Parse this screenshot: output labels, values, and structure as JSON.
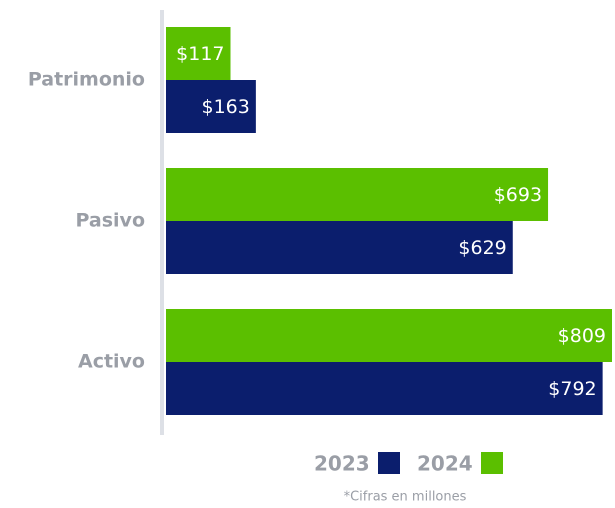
{
  "chart_data": {
    "type": "barh",
    "categories": [
      "Patrimonio",
      "Pasivo",
      "Activo"
    ],
    "series": [
      {
        "name": "2023",
        "color": "#0b1e6d",
        "values": [
          163,
          629,
          792
        ],
        "value_labels": [
          "$163",
          "$629",
          "$792"
        ]
      },
      {
        "name": "2024",
        "color": "#5bbf00",
        "values": [
          117,
          693,
          809
        ],
        "value_labels": [
          "$117",
          "$693",
          "$809"
        ]
      }
    ],
    "note": "*Cifras en millones"
  }
}
